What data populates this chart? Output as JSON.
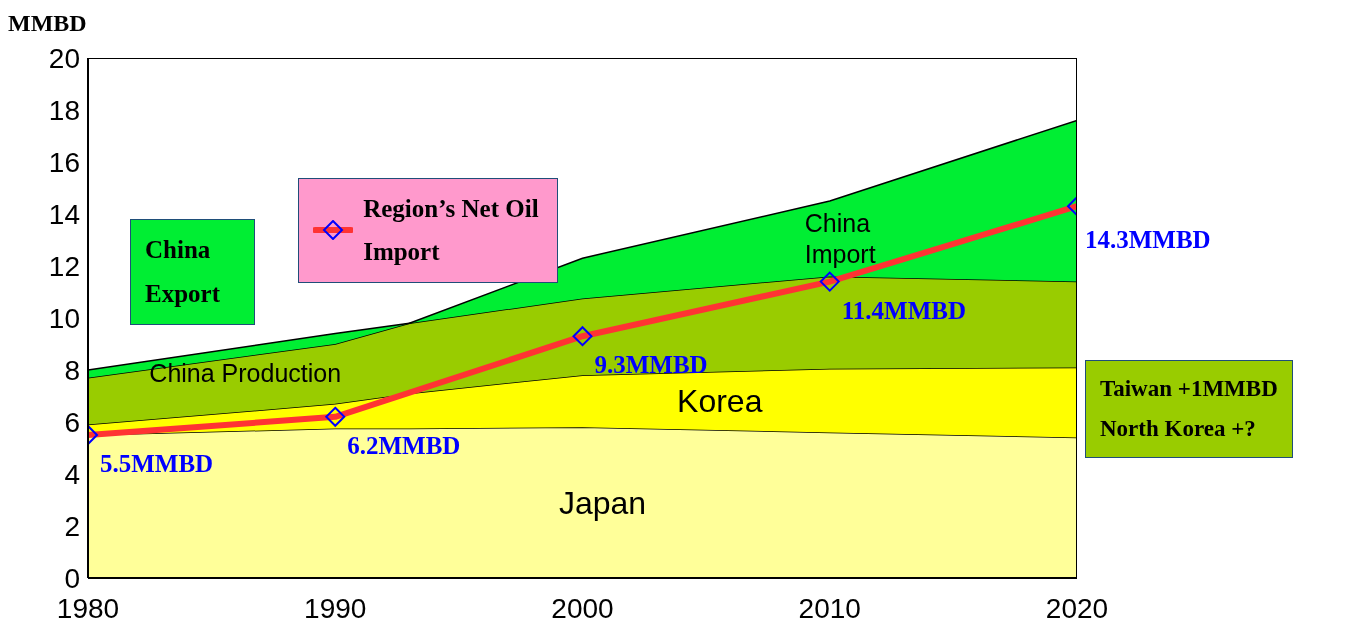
{
  "chart_data": {
    "type": "area",
    "ylabel": "MMBD",
    "x": [
      1980,
      1990,
      1993,
      2000,
      2010,
      2020
    ],
    "xlim": [
      1980,
      2020
    ],
    "xticks": [
      1980,
      1990,
      2000,
      2010,
      2020
    ],
    "ylim": [
      0,
      20
    ],
    "yticks": [
      0,
      2,
      4,
      6,
      8,
      10,
      12,
      14,
      16,
      18,
      20
    ],
    "stacked": true,
    "series": [
      {
        "name": "Japan",
        "color": "#ffff99",
        "values": [
          5.5,
          5.75,
          5.75,
          5.8,
          5.6,
          5.4
        ]
      },
      {
        "name": "Korea",
        "color": "#ffff00",
        "values": [
          0.4,
          0.95,
          1.35,
          2.0,
          2.45,
          2.7
        ]
      },
      {
        "name": "China Production",
        "color": "#99cc00",
        "values": [
          1.8,
          2.3,
          2.7,
          2.95,
          3.55,
          3.3
        ]
      },
      {
        "name": "China Import",
        "color": "#00ee33",
        "values": [
          0.3,
          0.4,
          0,
          1.55,
          2.9,
          6.2
        ]
      },
      {
        "name": "Region’s Net Oil Import",
        "type": "line",
        "color": "#ff3333",
        "marker": "diamond",
        "x": [
          1980,
          1990,
          2000,
          2010,
          2020
        ],
        "values": [
          5.5,
          6.2,
          9.3,
          11.4,
          14.3
        ],
        "value_labels": [
          "5.5MMBD",
          "6.2MMBD",
          "9.3MMBD",
          "11.4MMBD",
          "14.3MMBD"
        ]
      }
    ],
    "annotations": [
      "China Export",
      "Taiwan +1MMBD",
      "North Korea +?"
    ]
  }
}
